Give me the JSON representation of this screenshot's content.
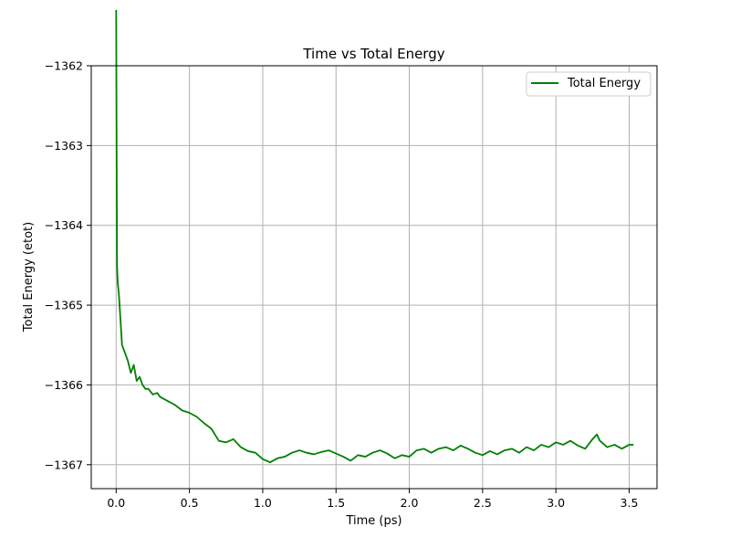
{
  "chart_data": {
    "type": "line",
    "title": "Time vs Total Energy",
    "xlabel": "Time (ps)",
    "ylabel": "Total Energy (etot)",
    "xlim": [
      -0.17,
      3.69
    ],
    "ylim": [
      -1367.3,
      -1362.0
    ],
    "xticks": [
      0.0,
      0.5,
      1.0,
      1.5,
      2.0,
      2.5,
      3.0,
      3.5
    ],
    "xtick_labels": [
      "0.0",
      "0.5",
      "1.0",
      "1.5",
      "2.0",
      "2.5",
      "3.0",
      "3.5"
    ],
    "yticks": [
      -1362,
      -1363,
      -1364,
      -1365,
      -1366,
      -1367
    ],
    "ytick_labels": [
      "−1362",
      "−1363",
      "−1364",
      "−1365",
      "−1366",
      "−1367"
    ],
    "grid": true,
    "legend_position": "top-right",
    "series": [
      {
        "name": "Total Energy",
        "color": "#008000",
        "points": [
          [
            0.0,
            -1361.3
          ],
          [
            0.003,
            -1363.0
          ],
          [
            0.006,
            -1364.5
          ],
          [
            0.01,
            -1364.7
          ],
          [
            0.02,
            -1364.9
          ],
          [
            0.03,
            -1365.2
          ],
          [
            0.04,
            -1365.5
          ],
          [
            0.06,
            -1365.6
          ],
          [
            0.08,
            -1365.7
          ],
          [
            0.1,
            -1365.85
          ],
          [
            0.12,
            -1365.75
          ],
          [
            0.14,
            -1365.95
          ],
          [
            0.16,
            -1365.9
          ],
          [
            0.18,
            -1366.0
          ],
          [
            0.2,
            -1366.05
          ],
          [
            0.22,
            -1366.05
          ],
          [
            0.25,
            -1366.12
          ],
          [
            0.28,
            -1366.1
          ],
          [
            0.3,
            -1366.15
          ],
          [
            0.35,
            -1366.2
          ],
          [
            0.4,
            -1366.25
          ],
          [
            0.45,
            -1366.32
          ],
          [
            0.5,
            -1366.35
          ],
          [
            0.55,
            -1366.4
          ],
          [
            0.6,
            -1366.48
          ],
          [
            0.65,
            -1366.55
          ],
          [
            0.7,
            -1366.7
          ],
          [
            0.75,
            -1366.72
          ],
          [
            0.8,
            -1366.68
          ],
          [
            0.85,
            -1366.78
          ],
          [
            0.9,
            -1366.83
          ],
          [
            0.95,
            -1366.85
          ],
          [
            1.0,
            -1366.93
          ],
          [
            1.05,
            -1366.97
          ],
          [
            1.1,
            -1366.92
          ],
          [
            1.15,
            -1366.9
          ],
          [
            1.2,
            -1366.85
          ],
          [
            1.25,
            -1366.82
          ],
          [
            1.3,
            -1366.85
          ],
          [
            1.35,
            -1366.87
          ],
          [
            1.4,
            -1366.84
          ],
          [
            1.45,
            -1366.82
          ],
          [
            1.5,
            -1366.86
          ],
          [
            1.55,
            -1366.9
          ],
          [
            1.6,
            -1366.95
          ],
          [
            1.65,
            -1366.88
          ],
          [
            1.7,
            -1366.9
          ],
          [
            1.75,
            -1366.85
          ],
          [
            1.8,
            -1366.82
          ],
          [
            1.85,
            -1366.86
          ],
          [
            1.9,
            -1366.92
          ],
          [
            1.95,
            -1366.88
          ],
          [
            2.0,
            -1366.9
          ],
          [
            2.05,
            -1366.82
          ],
          [
            2.1,
            -1366.8
          ],
          [
            2.15,
            -1366.85
          ],
          [
            2.2,
            -1366.8
          ],
          [
            2.25,
            -1366.78
          ],
          [
            2.3,
            -1366.82
          ],
          [
            2.35,
            -1366.76
          ],
          [
            2.4,
            -1366.8
          ],
          [
            2.45,
            -1366.85
          ],
          [
            2.5,
            -1366.88
          ],
          [
            2.55,
            -1366.83
          ],
          [
            2.6,
            -1366.87
          ],
          [
            2.65,
            -1366.82
          ],
          [
            2.7,
            -1366.8
          ],
          [
            2.75,
            -1366.85
          ],
          [
            2.8,
            -1366.78
          ],
          [
            2.85,
            -1366.82
          ],
          [
            2.9,
            -1366.75
          ],
          [
            2.95,
            -1366.78
          ],
          [
            3.0,
            -1366.72
          ],
          [
            3.05,
            -1366.75
          ],
          [
            3.1,
            -1366.7
          ],
          [
            3.15,
            -1366.76
          ],
          [
            3.2,
            -1366.8
          ],
          [
            3.25,
            -1366.68
          ],
          [
            3.28,
            -1366.62
          ],
          [
            3.3,
            -1366.7
          ],
          [
            3.35,
            -1366.78
          ],
          [
            3.4,
            -1366.75
          ],
          [
            3.45,
            -1366.8
          ],
          [
            3.5,
            -1366.75
          ],
          [
            3.53,
            -1366.75
          ]
        ]
      }
    ]
  }
}
